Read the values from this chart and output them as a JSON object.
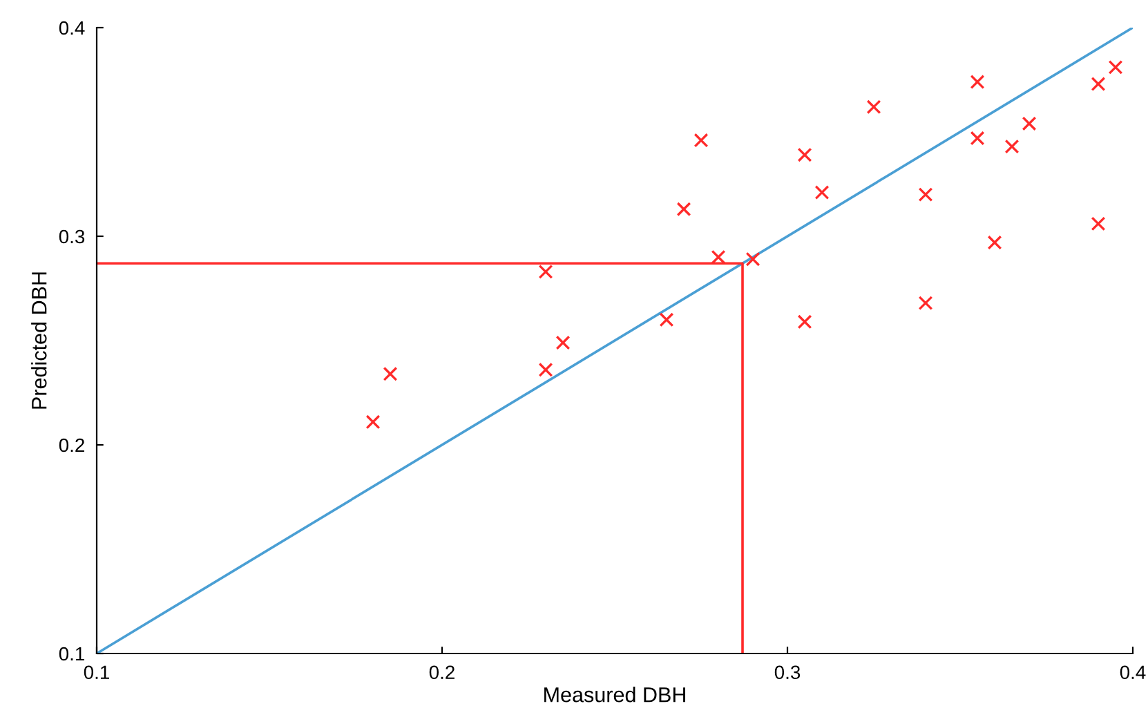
{
  "chart_data": {
    "type": "scatter",
    "xlabel": "Measured DBH",
    "ylabel": "Predicted DBH",
    "xlim": [
      0.1,
      0.4
    ],
    "ylim": [
      0.1,
      0.4
    ],
    "xticks": [
      0.1,
      0.2,
      0.3,
      0.4
    ],
    "yticks": [
      0.1,
      0.2,
      0.3,
      0.4
    ],
    "grid": false,
    "legend": false,
    "series": [
      {
        "marker": "cross",
        "color": "#ff2a2a",
        "x": [
          0.18,
          0.185,
          0.23,
          0.23,
          0.235,
          0.265,
          0.27,
          0.275,
          0.28,
          0.29,
          0.305,
          0.305,
          0.31,
          0.325,
          0.34,
          0.34,
          0.355,
          0.355,
          0.36,
          0.365,
          0.37,
          0.39,
          0.39,
          0.395
        ],
        "values": [
          0.211,
          0.234,
          0.283,
          0.236,
          0.249,
          0.26,
          0.313,
          0.346,
          0.29,
          0.289,
          0.339,
          0.259,
          0.321,
          0.362,
          0.32,
          0.268,
          0.374,
          0.347,
          0.297,
          0.343,
          0.354,
          0.373,
          0.306,
          0.381
        ]
      },
      {
        "type": "line",
        "marker": "none",
        "color": "#4a9fd4",
        "x": [
          0.1,
          0.4
        ],
        "values": [
          0.1,
          0.4
        ]
      },
      {
        "type": "line",
        "marker": "none",
        "color": "#ff2a2a",
        "x": [
          0.1,
          0.287,
          0.287
        ],
        "values": [
          0.287,
          0.287,
          0.1
        ]
      }
    ]
  }
}
